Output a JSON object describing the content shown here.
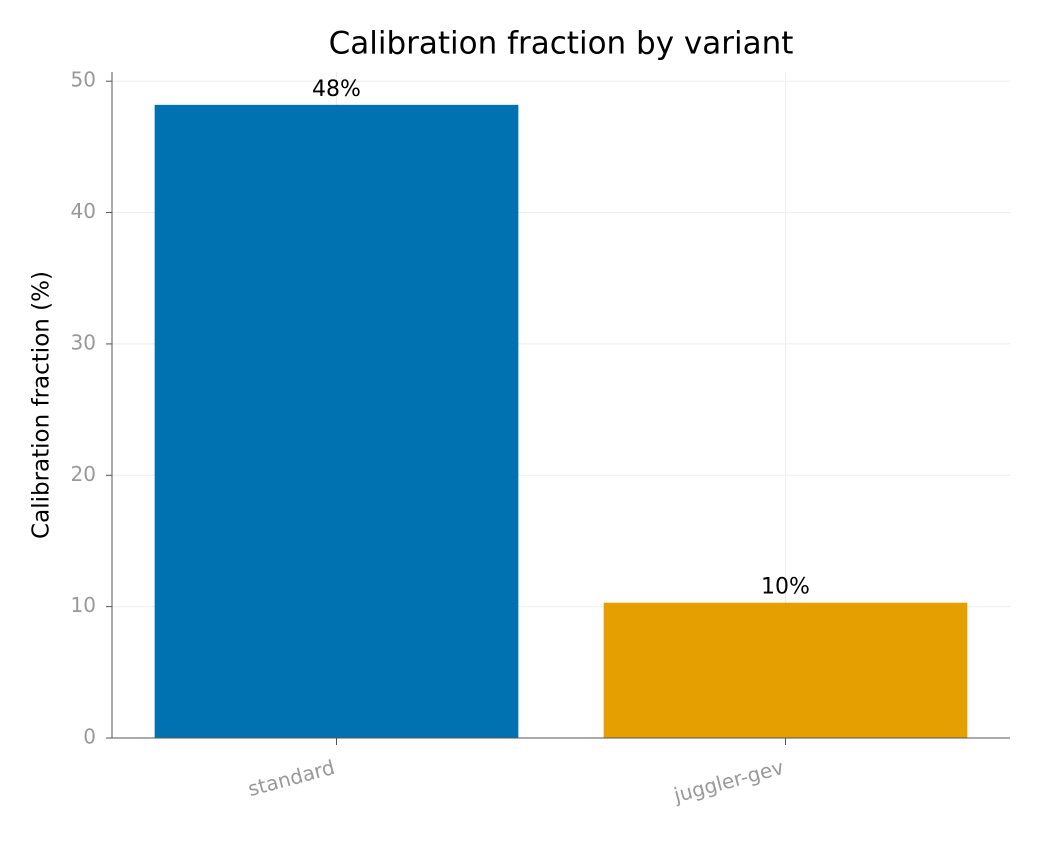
{
  "chart_data": {
    "type": "bar",
    "title": "Calibration fraction by variant",
    "y_label": "Calibration fraction (%)",
    "categories": [
      "standard",
      "juggler-gev"
    ],
    "values": [
      48.2,
      10.3
    ],
    "value_labels": [
      "48%",
      "10%"
    ],
    "colors": [
      "#0072b2",
      "#e69f00"
    ],
    "ylim": [
      0,
      50.7
    ],
    "yticks": [
      0,
      10,
      20,
      30,
      40,
      50
    ],
    "grid": true
  }
}
